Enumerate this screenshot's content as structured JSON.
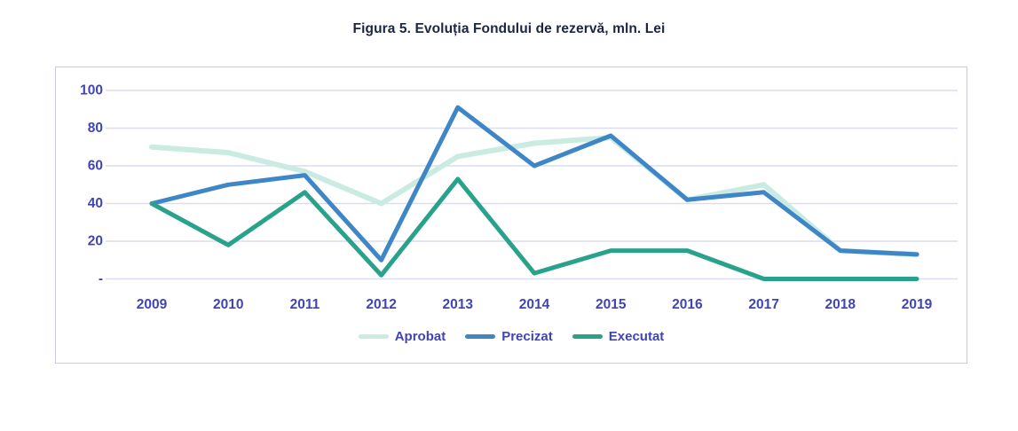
{
  "title": "Figura 5. Evoluția Fondului de rezervă, mln. Lei",
  "colors": {
    "axis_text": "#4144b3",
    "gridline": "#dcdcf2",
    "box_border": "#c8c9e8",
    "title_text": "#1b2640"
  },
  "chart_data": {
    "type": "line",
    "title": "Figura 5. Evoluția Fondului de rezervă, mln. Lei",
    "xlabel": "",
    "ylabel": "",
    "units": "mln. Lei",
    "x": [
      2009,
      2010,
      2011,
      2012,
      2013,
      2014,
      2015,
      2016,
      2017,
      2018,
      2019
    ],
    "series": [
      {
        "name": "Aprobat",
        "color": "#c9ebe2",
        "values": [
          70,
          67,
          57,
          40,
          65,
          72,
          75,
          42,
          50,
          15,
          13
        ]
      },
      {
        "name": "Precizat",
        "color": "#3e86c6",
        "values": [
          40,
          50,
          55,
          10,
          91,
          60,
          76,
          42,
          46,
          15,
          13
        ]
      },
      {
        "name": "Executat",
        "color": "#29a28b",
        "values": [
          40,
          18,
          46,
          2,
          53,
          3,
          15,
          15,
          0,
          0,
          0
        ]
      }
    ],
    "ylim": [
      0,
      100
    ],
    "yticks": [
      100,
      80,
      60,
      40,
      20,
      0
    ],
    "ytick_labels": [
      "100",
      "80",
      "60",
      "40",
      "20",
      "-"
    ],
    "grid": true,
    "legend_position": "bottom"
  }
}
